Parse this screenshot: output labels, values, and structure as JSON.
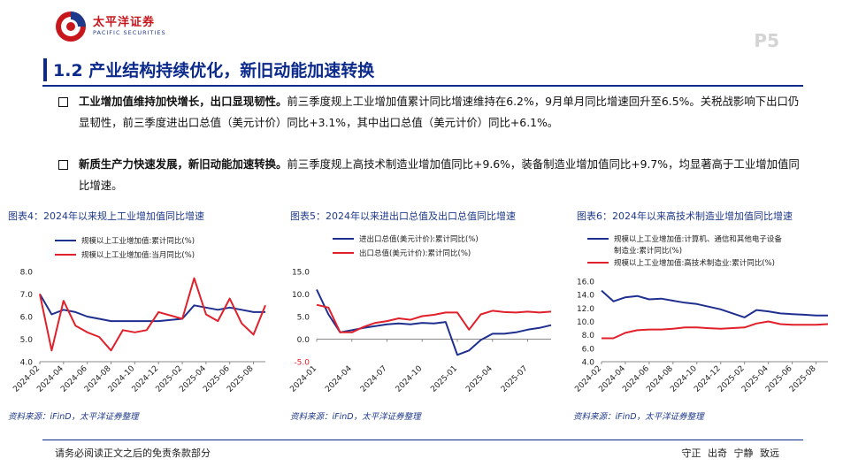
{
  "header": {
    "logo_cn": "太平洋证券",
    "logo_en": "PACIFIC SECURITIES",
    "page_number": "P5"
  },
  "section_title": "1.2 产业结构持续优化，新旧动能加速转换",
  "bullets": [
    {
      "bold": "工业增加值维持加快增长，出口显现韧性。",
      "text": "前三季度规上工业增加值累计同比增速维持在6.2%，9月单月同比增速回升至6.5%。关税战影响下出口仍显韧性，前三季度进出口总值（美元计价）同比+3.1%，其中出口总值（美元计价）同比+6.1%。"
    },
    {
      "bold": "新质生产力快速发展，新旧动能加速转换。",
      "text": "前三季度规上高技术制造业增加值同比+9.6%，装备制造业增加值同比+9.7%，均显著高于工业增加值同比增速。"
    }
  ],
  "figures": [
    {
      "title": "图表4：2024年以来规上工业增加值同比增速",
      "source": "资料来源：iFinD，太平洋证券整理"
    },
    {
      "title": "图表5：2024年以来进出口总值及出口总值同比增速",
      "source": "资料来源：iFinD，太平洋证券整理"
    },
    {
      "title": "图表6：2024年以来高技术制造业增加值同比增速",
      "source": "资料来源：iFinD，太平洋证券整理"
    }
  ],
  "chart_data": [
    {
      "type": "line",
      "x": [
        "2024-02",
        "2024-03",
        "2024-04",
        "2024-05",
        "2024-06",
        "2024-07",
        "2024-08",
        "2024-09",
        "2024-10",
        "2024-11",
        "2024-12",
        "2025-01",
        "2025-02",
        "2025-03",
        "2025-04",
        "2025-05",
        "2025-06",
        "2025-07",
        "2025-08",
        "2025-09"
      ],
      "xticks": [
        "2024-02",
        "2024-04",
        "2024-06",
        "2024-08",
        "2024-10",
        "2024-12",
        "2025-02",
        "2025-04",
        "2025-06",
        "2025-08"
      ],
      "ylim": [
        4.0,
        8.0
      ],
      "yticks": [
        "4.0",
        "5.0",
        "6.0",
        "7.0",
        "8.0"
      ],
      "series": [
        {
          "name": "规模以上工业增加值:累计同比(%)",
          "color": "#1f2f8f",
          "values": [
            7.0,
            6.1,
            6.3,
            6.2,
            6.0,
            5.9,
            5.8,
            5.8,
            5.8,
            5.8,
            5.8,
            null,
            5.9,
            6.5,
            6.4,
            6.3,
            6.4,
            6.3,
            6.2,
            6.2
          ]
        },
        {
          "name": "规模以上工业增加值:当月同比(%)",
          "color": "#e0202a",
          "values": [
            7.0,
            4.5,
            6.7,
            5.6,
            5.3,
            5.1,
            4.5,
            5.4,
            5.3,
            5.4,
            6.2,
            null,
            5.9,
            7.7,
            6.1,
            5.8,
            6.8,
            5.7,
            5.2,
            6.5
          ]
        }
      ]
    },
    {
      "type": "line",
      "x": [
        "2024-01",
        "2024-02",
        "2024-03",
        "2024-04",
        "2024-05",
        "2024-06",
        "2024-07",
        "2024-08",
        "2024-09",
        "2024-10",
        "2024-11",
        "2024-12",
        "2025-01",
        "2025-02",
        "2025-03",
        "2025-04",
        "2025-05",
        "2025-06",
        "2025-07",
        "2025-08",
        "2025-09"
      ],
      "xticks": [
        "2024-01",
        "2024-04",
        "2024-07",
        "2024-10",
        "2025-01",
        "2025-04",
        "2025-07"
      ],
      "ylim": [
        -5.0,
        15.0
      ],
      "yticks": [
        "-5.0",
        "0.0",
        "5.0",
        "10.0",
        "15.0"
      ],
      "series": [
        {
          "name": "进出口总值(美元计价):累计同比(%)",
          "color": "#1f2f8f",
          "values": [
            11.0,
            5.5,
            1.5,
            2.0,
            2.5,
            2.9,
            3.3,
            3.5,
            3.3,
            3.6,
            3.5,
            3.8,
            -3.5,
            -2.5,
            -0.2,
            1.2,
            1.2,
            1.5,
            2.1,
            2.5,
            3.1
          ]
        },
        {
          "name": "出口总值(美元计价):累计同比(%)",
          "color": "#e0202a",
          "values": [
            7.6,
            7.0,
            1.5,
            1.5,
            2.7,
            3.6,
            4.0,
            4.6,
            4.3,
            5.1,
            5.4,
            5.9,
            5.9,
            2.1,
            5.5,
            6.3,
            6.0,
            5.9,
            6.1,
            5.9,
            6.1
          ]
        }
      ]
    },
    {
      "type": "line",
      "x": [
        "2024-02",
        "2024-03",
        "2024-04",
        "2024-05",
        "2024-06",
        "2024-07",
        "2024-08",
        "2024-09",
        "2024-10",
        "2024-11",
        "2024-12",
        "2025-01",
        "2025-02",
        "2025-03",
        "2025-04",
        "2025-05",
        "2025-06",
        "2025-07",
        "2025-08",
        "2025-09"
      ],
      "xticks": [
        "2024-02",
        "2024-04",
        "2024-06",
        "2024-08",
        "2024-10",
        "2024-12",
        "2025-02",
        "2025-04",
        "2025-06",
        "2025-08"
      ],
      "ylim": [
        4.0,
        16.0
      ],
      "yticks": [
        "4.0",
        "6.0",
        "8.0",
        "10.0",
        "12.0",
        "14.0",
        "16.0"
      ],
      "series": [
        {
          "name": "规模以上工业增加值:计算机、通信和其他电子设备制造业:累计同比(%)",
          "color": "#1f2f8f",
          "values": [
            14.6,
            13.0,
            13.6,
            13.8,
            13.3,
            13.4,
            13.1,
            12.8,
            12.6,
            12.2,
            11.8,
            null,
            10.6,
            11.7,
            11.5,
            11.2,
            11.1,
            11.0,
            10.9,
            10.9
          ]
        },
        {
          "name": "规模以上工业增加值:高技术制造业:累计同比(%)",
          "color": "#e0202a",
          "values": [
            7.5,
            7.5,
            8.3,
            8.7,
            8.8,
            8.8,
            8.9,
            9.1,
            9.1,
            9.0,
            8.9,
            null,
            9.1,
            9.7,
            10.0,
            9.6,
            9.5,
            9.5,
            9.5,
            9.6
          ]
        }
      ]
    }
  ],
  "footer": {
    "disclaimer": "请务必阅读正文之后的免责条款部分",
    "motto": "守正 出奇 宁静 致远"
  }
}
